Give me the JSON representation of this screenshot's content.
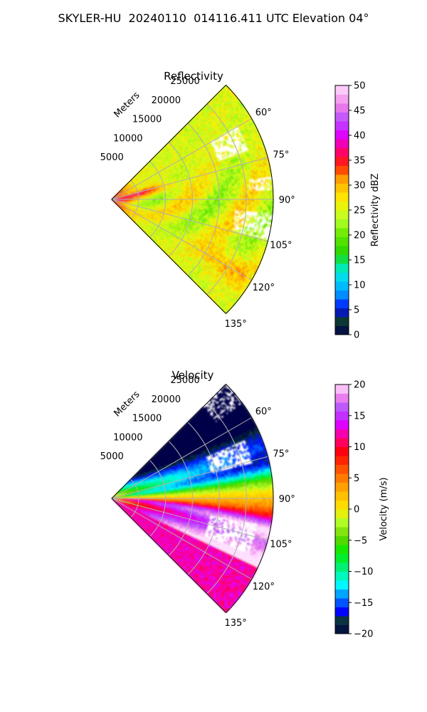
{
  "figure": {
    "title": "SKYLER-HU  20240110  014116.411 UTC Elevation 04°"
  },
  "chart_data": [
    {
      "type": "heatmap",
      "projection": "polar",
      "title": "Reflectivity",
      "radial_label": "Meters",
      "radial_ticks": [
        5000,
        10000,
        15000,
        20000,
        25000
      ],
      "radial_tick_labels": [
        "5000",
        "10000",
        "15000",
        "20000",
        "25000"
      ],
      "azimuth_range_deg": [
        45,
        135
      ],
      "max_range_m": 30000,
      "azimuth_ticks": [
        60,
        75,
        90,
        105,
        120,
        135
      ],
      "azimuth_tick_labels": [
        "60°",
        "75°",
        "90°",
        "105°",
        "120°",
        "135°"
      ],
      "grid": true,
      "colorbar": {
        "label": "Reflectivity dBZ",
        "range": [
          0,
          50
        ],
        "ticks": [
          0,
          5,
          10,
          15,
          20,
          25,
          30,
          35,
          40,
          45,
          50
        ],
        "tick_labels": [
          "0",
          "5",
          "10",
          "15",
          "20",
          "25",
          "30",
          "35",
          "40",
          "45",
          "50"
        ],
        "stops": [
          {
            "v": 0,
            "c": "#00004a"
          },
          {
            "v": 2,
            "c": "#0a2a3a"
          },
          {
            "v": 3.5,
            "c": "#0d4a2c"
          },
          {
            "v": 5,
            "c": "#0000ff"
          },
          {
            "v": 8,
            "c": "#008cff"
          },
          {
            "v": 11,
            "c": "#00d7ff"
          },
          {
            "v": 14,
            "c": "#00f0a0"
          },
          {
            "v": 16,
            "c": "#22d400"
          },
          {
            "v": 20,
            "c": "#66e800"
          },
          {
            "v": 23,
            "c": "#b4ff28"
          },
          {
            "v": 27,
            "c": "#fff000"
          },
          {
            "v": 31,
            "c": "#ffa800"
          },
          {
            "v": 34,
            "c": "#ff2000"
          },
          {
            "v": 37,
            "c": "#ff0078"
          },
          {
            "v": 40,
            "c": "#e000ff"
          },
          {
            "v": 43,
            "c": "#b84cff"
          },
          {
            "v": 46,
            "c": "#f080e8"
          },
          {
            "v": 50,
            "c": "#ffe0ff"
          }
        ]
      }
    },
    {
      "type": "heatmap",
      "projection": "polar",
      "title": "Velocity",
      "radial_label": "Meters",
      "radial_ticks": [
        5000,
        10000,
        15000,
        20000,
        25000
      ],
      "radial_tick_labels": [
        "5000",
        "10000",
        "15000",
        "20000",
        "25000"
      ],
      "azimuth_range_deg": [
        45,
        135
      ],
      "max_range_m": 30000,
      "azimuth_ticks": [
        60,
        75,
        90,
        105,
        120,
        135
      ],
      "azimuth_tick_labels": [
        "60°",
        "75°",
        "90°",
        "105°",
        "120°",
        "135°"
      ],
      "grid": true,
      "colorbar": {
        "label": "Velocity (m/s)",
        "range": [
          -20,
          20
        ],
        "ticks": [
          -20,
          -15,
          -10,
          -5,
          0,
          5,
          10,
          15,
          20
        ],
        "tick_labels": [
          "−20",
          "−15",
          "−10",
          "−5",
          "0",
          "5",
          "10",
          "15",
          "20"
        ],
        "stops": [
          {
            "v": -20,
            "c": "#00004a"
          },
          {
            "v": -18,
            "c": "#0b3a2e"
          },
          {
            "v": -16.5,
            "c": "#0000ff"
          },
          {
            "v": -14,
            "c": "#008cff"
          },
          {
            "v": -12,
            "c": "#00ffff"
          },
          {
            "v": -9.5,
            "c": "#00f080"
          },
          {
            "v": -7,
            "c": "#00ee00"
          },
          {
            "v": -4.5,
            "c": "#66d400"
          },
          {
            "v": -2,
            "c": "#b4ff28"
          },
          {
            "v": 0,
            "c": "#ffe800"
          },
          {
            "v": 3,
            "c": "#ffb000"
          },
          {
            "v": 6,
            "c": "#ff6000"
          },
          {
            "v": 9,
            "c": "#ff0000"
          },
          {
            "v": 11.5,
            "c": "#ff0088"
          },
          {
            "v": 13.5,
            "c": "#e000ff"
          },
          {
            "v": 16,
            "c": "#b050ff"
          },
          {
            "v": 18,
            "c": "#f080ee"
          },
          {
            "v": 20,
            "c": "#ffe0ff"
          }
        ]
      }
    }
  ]
}
